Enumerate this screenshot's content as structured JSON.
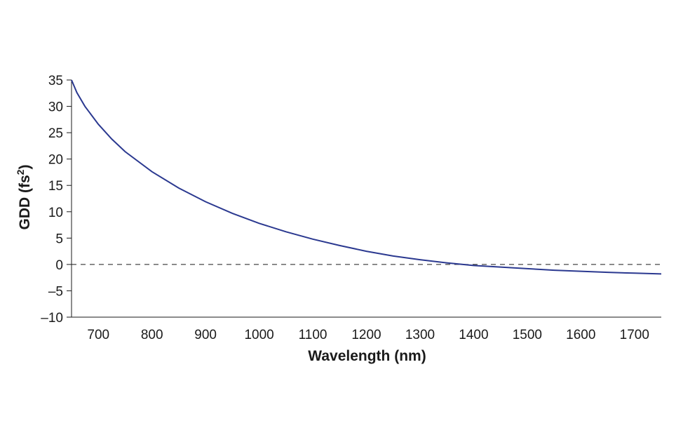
{
  "chart_data": {
    "type": "line",
    "xlabel": "Wavelength (nm)",
    "ylabel": "GDD (fs",
    "ylabel_superscript": "2",
    "ylabel_suffix": ")",
    "xlim": [
      650,
      1750
    ],
    "ylim": [
      -10,
      35
    ],
    "x_ticks": [
      700,
      800,
      900,
      1000,
      1100,
      1200,
      1300,
      1400,
      1500,
      1600,
      1700
    ],
    "y_ticks": [
      35,
      30,
      25,
      20,
      15,
      10,
      5,
      0,
      -5,
      -10
    ],
    "y_tick_labels": [
      "35",
      "30",
      "25",
      "20",
      "15",
      "10",
      "5",
      "0",
      "–5",
      "–10"
    ],
    "grid": false,
    "reference_line": {
      "y": 0,
      "style": "dashed"
    },
    "series": [
      {
        "color": "#2b3990",
        "x": [
          650,
          660,
          675,
          700,
          725,
          750,
          800,
          850,
          900,
          950,
          1000,
          1050,
          1100,
          1150,
          1200,
          1250,
          1300,
          1350,
          1400,
          1450,
          1500,
          1525,
          1550,
          1600,
          1650,
          1700,
          1750
        ],
        "y": [
          35,
          32.6,
          30.0,
          26.6,
          23.8,
          21.4,
          17.6,
          14.5,
          11.9,
          9.7,
          7.8,
          6.2,
          4.8,
          3.6,
          2.5,
          1.6,
          0.9,
          0.3,
          -0.2,
          -0.5,
          -0.8,
          -0.95,
          -1.1,
          -1.3,
          -1.5,
          -1.65,
          -1.8
        ]
      }
    ]
  }
}
